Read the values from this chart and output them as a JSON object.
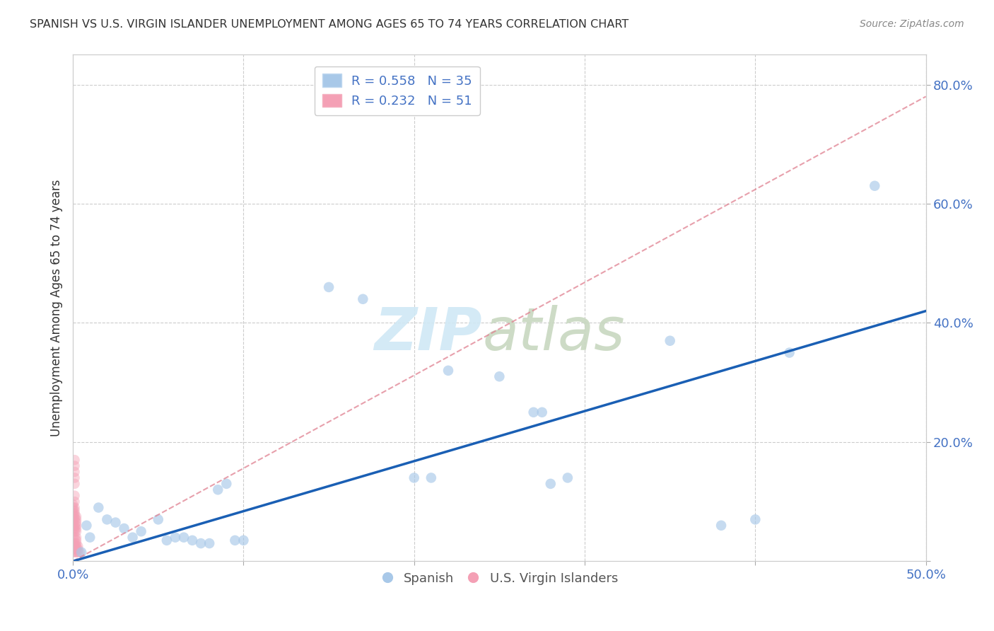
{
  "title": "SPANISH VS U.S. VIRGIN ISLANDER UNEMPLOYMENT AMONG AGES 65 TO 74 YEARS CORRELATION CHART",
  "source": "Source: ZipAtlas.com",
  "ylabel": "Unemployment Among Ages 65 to 74 years",
  "xlim": [
    0.0,
    0.5
  ],
  "ylim": [
    0.0,
    0.85
  ],
  "background_color": "#ffffff",
  "grid_color": "#cccccc",
  "spanish_color": "#a8c8e8",
  "vi_color": "#f4a0b5",
  "spanish_scatter": [
    [
      0.005,
      0.015
    ],
    [
      0.008,
      0.06
    ],
    [
      0.01,
      0.04
    ],
    [
      0.015,
      0.09
    ],
    [
      0.02,
      0.07
    ],
    [
      0.025,
      0.065
    ],
    [
      0.03,
      0.055
    ],
    [
      0.035,
      0.04
    ],
    [
      0.04,
      0.05
    ],
    [
      0.05,
      0.07
    ],
    [
      0.055,
      0.035
    ],
    [
      0.06,
      0.04
    ],
    [
      0.065,
      0.04
    ],
    [
      0.07,
      0.035
    ],
    [
      0.075,
      0.03
    ],
    [
      0.08,
      0.03
    ],
    [
      0.085,
      0.12
    ],
    [
      0.09,
      0.13
    ],
    [
      0.095,
      0.035
    ],
    [
      0.1,
      0.035
    ],
    [
      0.15,
      0.46
    ],
    [
      0.17,
      0.44
    ],
    [
      0.2,
      0.14
    ],
    [
      0.21,
      0.14
    ],
    [
      0.22,
      0.32
    ],
    [
      0.25,
      0.31
    ],
    [
      0.27,
      0.25
    ],
    [
      0.275,
      0.25
    ],
    [
      0.28,
      0.13
    ],
    [
      0.29,
      0.14
    ],
    [
      0.35,
      0.37
    ],
    [
      0.38,
      0.06
    ],
    [
      0.4,
      0.07
    ],
    [
      0.42,
      0.35
    ],
    [
      0.47,
      0.63
    ]
  ],
  "vi_scatter": [
    [
      0.0,
      0.015
    ],
    [
      0.0,
      0.02
    ],
    [
      0.0,
      0.025
    ],
    [
      0.0,
      0.03
    ],
    [
      0.0,
      0.04
    ],
    [
      0.0,
      0.05
    ],
    [
      0.0,
      0.055
    ],
    [
      0.0,
      0.06
    ],
    [
      0.0,
      0.065
    ],
    [
      0.0,
      0.07
    ],
    [
      0.0,
      0.075
    ],
    [
      0.0,
      0.08
    ],
    [
      0.0,
      0.085
    ],
    [
      0.0,
      0.09
    ],
    [
      0.0,
      0.095
    ],
    [
      0.001,
      0.015
    ],
    [
      0.001,
      0.02
    ],
    [
      0.001,
      0.025
    ],
    [
      0.001,
      0.03
    ],
    [
      0.001,
      0.04
    ],
    [
      0.001,
      0.05
    ],
    [
      0.001,
      0.055
    ],
    [
      0.001,
      0.06
    ],
    [
      0.001,
      0.07
    ],
    [
      0.001,
      0.075
    ],
    [
      0.001,
      0.08
    ],
    [
      0.001,
      0.085
    ],
    [
      0.001,
      0.09
    ],
    [
      0.001,
      0.1
    ],
    [
      0.001,
      0.11
    ],
    [
      0.001,
      0.13
    ],
    [
      0.001,
      0.14
    ],
    [
      0.001,
      0.15
    ],
    [
      0.001,
      0.16
    ],
    [
      0.001,
      0.17
    ],
    [
      0.002,
      0.015
    ],
    [
      0.002,
      0.02
    ],
    [
      0.002,
      0.025
    ],
    [
      0.002,
      0.03
    ],
    [
      0.002,
      0.035
    ],
    [
      0.002,
      0.04
    ],
    [
      0.002,
      0.05
    ],
    [
      0.002,
      0.055
    ],
    [
      0.002,
      0.06
    ],
    [
      0.002,
      0.065
    ],
    [
      0.002,
      0.07
    ],
    [
      0.002,
      0.075
    ],
    [
      0.003,
      0.015
    ],
    [
      0.003,
      0.02
    ],
    [
      0.003,
      0.025
    ],
    [
      0.004,
      0.015
    ]
  ],
  "spanish_line_x": [
    0.0,
    0.5
  ],
  "spanish_line_y": [
    0.0,
    0.42
  ],
  "vi_line_x": [
    0.0,
    0.5
  ],
  "vi_line_y": [
    0.0,
    0.78
  ],
  "vi_line_color": "#e08090",
  "spanish_line_color": "#1a5fb4"
}
